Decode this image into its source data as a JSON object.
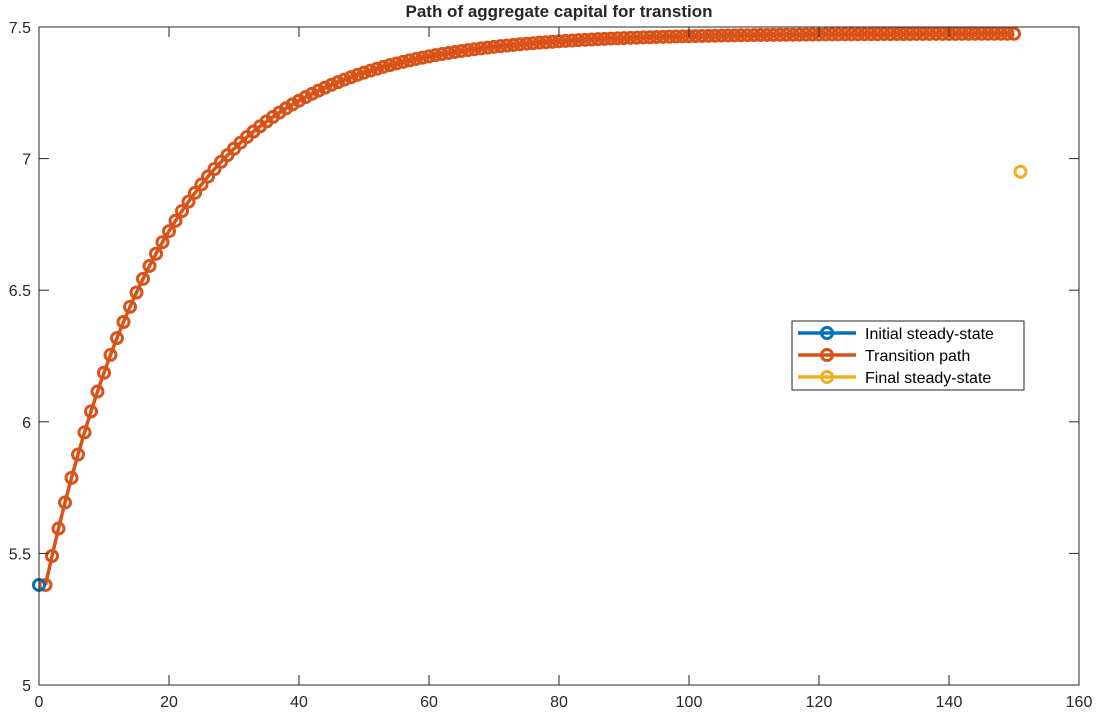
{
  "chart_data": {
    "type": "line",
    "title": "Path of aggregate capital for transtion",
    "xlabel": "",
    "ylabel": "",
    "xlim": [
      0,
      160
    ],
    "ylim": [
      5,
      7.5
    ],
    "xticks": [
      0,
      20,
      40,
      60,
      80,
      100,
      120,
      140,
      160
    ],
    "yticks": [
      5,
      5.5,
      6,
      6.5,
      7,
      7.5
    ],
    "xtick_labels": [
      "0",
      "20",
      "40",
      "60",
      "80",
      "100",
      "120",
      "140",
      "160"
    ],
    "ytick_labels": [
      "5",
      "5.5",
      "6",
      "6.5",
      "7",
      "7.5"
    ],
    "grid": false,
    "legend_position": "center-right",
    "series": [
      {
        "name": "Initial steady-state",
        "color": "#0072BD",
        "marker": "circle",
        "points": [
          [
            0,
            5.38
          ]
        ]
      },
      {
        "name": "Transition path",
        "color": "#D95319",
        "marker": "circle",
        "x_start": 1,
        "x_end": 150,
        "x_step": 1,
        "y0": 5.38,
        "y_final": 7.475,
        "decay_rate": 0.054
      },
      {
        "name": "Final steady-state",
        "color": "#EDB120",
        "marker": "circle",
        "points": [
          [
            151,
            6.95
          ]
        ]
      }
    ]
  }
}
